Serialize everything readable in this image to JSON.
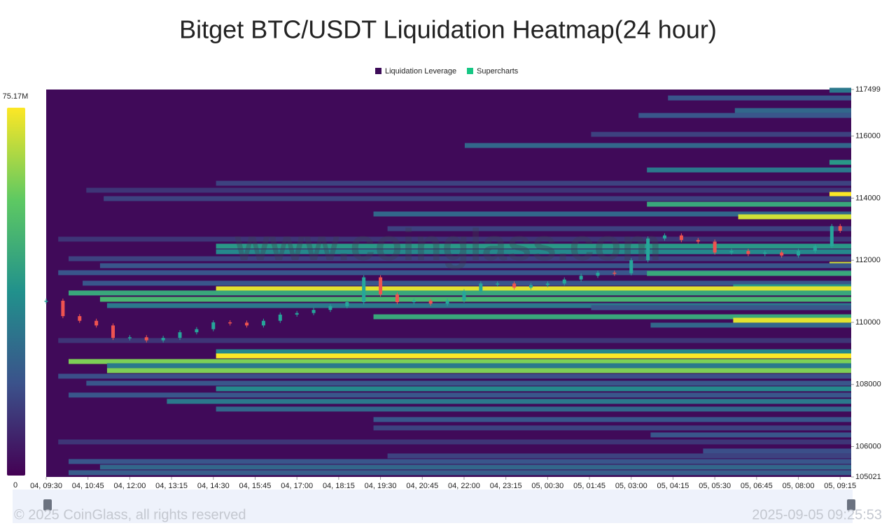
{
  "chart_data": {
    "type": "heatmap",
    "title": "Bitget BTC/USDT Liquidation Heatmap(24 hour)",
    "legend": [
      {
        "name": "Liquidation Leverage",
        "color": "#3d0c58"
      },
      {
        "name": "Supercharts",
        "color": "#16c784"
      }
    ],
    "watermark": "www.coinglass.com",
    "footer_left": "© 2025 CoinGlass, all rights reserved",
    "footer_right": "2025-09-05 09:25:53",
    "colorbar": {
      "max": {
        "value": 75170000,
        "label": "75.17M"
      },
      "min": 0
    },
    "background": "#400a59",
    "xlim": [
      0,
      24.08
    ],
    "ylim": [
      105021,
      117499
    ],
    "xticks": [
      {
        "value": 0,
        "label": "04, 09:30"
      },
      {
        "value": 1.25,
        "label": "04, 10:45"
      },
      {
        "value": 2.5,
        "label": "04, 12:00"
      },
      {
        "value": 3.75,
        "label": "04, 13:15"
      },
      {
        "value": 5,
        "label": "04, 14:30"
      },
      {
        "value": 6.25,
        "label": "04, 15:45"
      },
      {
        "value": 7.5,
        "label": "04, 17:00"
      },
      {
        "value": 8.75,
        "label": "04, 18:15"
      },
      {
        "value": 10,
        "label": "04, 19:30"
      },
      {
        "value": 11.25,
        "label": "04, 20:45"
      },
      {
        "value": 12.5,
        "label": "04, 22:00"
      },
      {
        "value": 13.75,
        "label": "04, 23:15"
      },
      {
        "value": 15,
        "label": "05, 00:30"
      },
      {
        "value": 16.25,
        "label": "05, 01:45"
      },
      {
        "value": 17.5,
        "label": "05, 03:00"
      },
      {
        "value": 18.75,
        "label": "05, 04:15"
      },
      {
        "value": 20,
        "label": "05, 05:30"
      },
      {
        "value": 21.25,
        "label": "05, 06:45"
      },
      {
        "value": 22.5,
        "label": "05, 08:00"
      },
      {
        "value": 23.75,
        "label": "05, 09:15"
      }
    ],
    "yticks": [
      105021,
      106000,
      108000,
      110000,
      112000,
      114000,
      116000,
      117499
    ],
    "bands": [
      {
        "price": 117476,
        "start": 23.43,
        "value": 30000000
      },
      {
        "price": 117227,
        "start": 18.6,
        "value": 20000000
      },
      {
        "price": 116822,
        "start": 20.6,
        "value": 25000000
      },
      {
        "price": 116664,
        "start": 17.72,
        "value": 20000000
      },
      {
        "price": 116056,
        "start": 16.3,
        "value": 15000000
      },
      {
        "price": 115696,
        "start": 12.52,
        "value": 25000000
      },
      {
        "price": 115155,
        "start": 23.43,
        "value": 40000000
      },
      {
        "price": 114908,
        "start": 17.97,
        "value": 30000000
      },
      {
        "price": 114480,
        "start": 5.08,
        "value": 15000000
      },
      {
        "price": 114255,
        "start": 1.2,
        "value": 12000000
      },
      {
        "price": 114120,
        "start": 23.43,
        "value": 75000000
      },
      {
        "price": 113985,
        "start": 1.72,
        "value": 15000000
      },
      {
        "price": 113805,
        "start": 17.97,
        "value": 45000000
      },
      {
        "price": 113490,
        "start": 9.79,
        "value": 25000000
      },
      {
        "price": 113400,
        "start": 20.7,
        "value": 70000000
      },
      {
        "price": 113017,
        "start": 10.21,
        "value": 15000000
      },
      {
        "price": 112680,
        "start": 0.36,
        "value": 12000000
      },
      {
        "price": 112454,
        "start": 5.08,
        "value": 40000000
      },
      {
        "price": 112274,
        "start": 5.08,
        "value": 35000000
      },
      {
        "price": 112049,
        "start": 0.67,
        "value": 15000000
      },
      {
        "price": 111869,
        "start": 23.43,
        "value": 70000000
      },
      {
        "price": 111824,
        "start": 1.61,
        "value": 20000000
      },
      {
        "price": 111599,
        "start": 0.36,
        "value": 20000000
      },
      {
        "price": 111576,
        "start": 17.97,
        "value": 45000000
      },
      {
        "price": 111261,
        "start": 1.09,
        "value": 20000000
      },
      {
        "price": 111148,
        "start": 20.55,
        "value": 40000000
      },
      {
        "price": 111081,
        "start": 5.08,
        "value": 72000000
      },
      {
        "price": 110946,
        "start": 0.67,
        "value": 45000000
      },
      {
        "price": 110743,
        "start": 1.61,
        "value": 50000000
      },
      {
        "price": 110540,
        "start": 1.82,
        "value": 30000000
      },
      {
        "price": 110473,
        "start": 16.3,
        "value": 20000000
      },
      {
        "price": 110180,
        "start": 9.79,
        "value": 45000000
      },
      {
        "price": 110068,
        "start": 20.55,
        "value": 72000000
      },
      {
        "price": 109910,
        "start": 18.08,
        "value": 25000000
      },
      {
        "price": 109415,
        "start": 0.36,
        "value": 12000000
      },
      {
        "price": 109054,
        "start": 5.08,
        "value": 35000000
      },
      {
        "price": 108919,
        "start": 5.08,
        "value": 75000000
      },
      {
        "price": 108739,
        "start": 0.67,
        "value": 60000000
      },
      {
        "price": 108604,
        "start": 1.82,
        "value": 30000000
      },
      {
        "price": 108446,
        "start": 1.82,
        "value": 60000000
      },
      {
        "price": 108266,
        "start": 0.36,
        "value": 18000000
      },
      {
        "price": 108041,
        "start": 1.2,
        "value": 20000000
      },
      {
        "price": 107860,
        "start": 5.08,
        "value": 35000000
      },
      {
        "price": 107658,
        "start": 0.67,
        "value": 20000000
      },
      {
        "price": 107455,
        "start": 3.61,
        "value": 30000000
      },
      {
        "price": 107207,
        "start": 5.08,
        "value": 25000000
      },
      {
        "price": 106870,
        "start": 9.79,
        "value": 20000000
      },
      {
        "price": 106600,
        "start": 9.79,
        "value": 15000000
      },
      {
        "price": 106374,
        "start": 18.08,
        "value": 20000000
      },
      {
        "price": 106149,
        "start": 0.36,
        "value": 12000000
      },
      {
        "price": 105856,
        "start": 19.65,
        "value": 18000000
      },
      {
        "price": 105698,
        "start": 10.21,
        "value": 15000000
      },
      {
        "price": 105518,
        "start": 0.67,
        "value": 20000000
      },
      {
        "price": 105338,
        "start": 1.61,
        "value": 25000000
      },
      {
        "price": 105158,
        "start": 0.67,
        "value": 22000000
      }
    ],
    "series": [
      {
        "name": "Supercharts",
        "up_color": "#26a69a",
        "down_color": "#ef5350",
        "x": [
          0,
          0.5,
          1,
          1.5,
          2,
          2.5,
          3,
          3.5,
          4,
          4.5,
          5,
          5.5,
          6,
          6.5,
          7,
          7.5,
          8,
          8.5,
          9,
          9.5,
          10,
          10.5,
          11,
          11.5,
          12,
          12.5,
          13,
          13.5,
          14,
          14.5,
          15,
          15.5,
          16,
          16.5,
          17,
          17.5,
          18,
          18.5,
          19,
          19.5,
          20,
          20.5,
          21,
          21.5,
          22,
          22.5,
          23,
          23.5,
          23.75
        ],
        "values": [
          110697,
          110200,
          110050,
          109900,
          109500,
          109520,
          109420,
          109500,
          109680,
          109780,
          110000,
          109990,
          109900,
          110050,
          110250,
          110300,
          110400,
          110520,
          110650,
          111450,
          110900,
          110650,
          110700,
          110600,
          110700,
          111000,
          111250,
          111250,
          111120,
          111200,
          111250,
          111380,
          111500,
          111600,
          111580,
          112000,
          112700,
          112800,
          112650,
          112600,
          112250,
          112300,
          112200,
          112250,
          112150,
          112300,
          112450,
          113100,
          112950
        ]
      }
    ]
  }
}
